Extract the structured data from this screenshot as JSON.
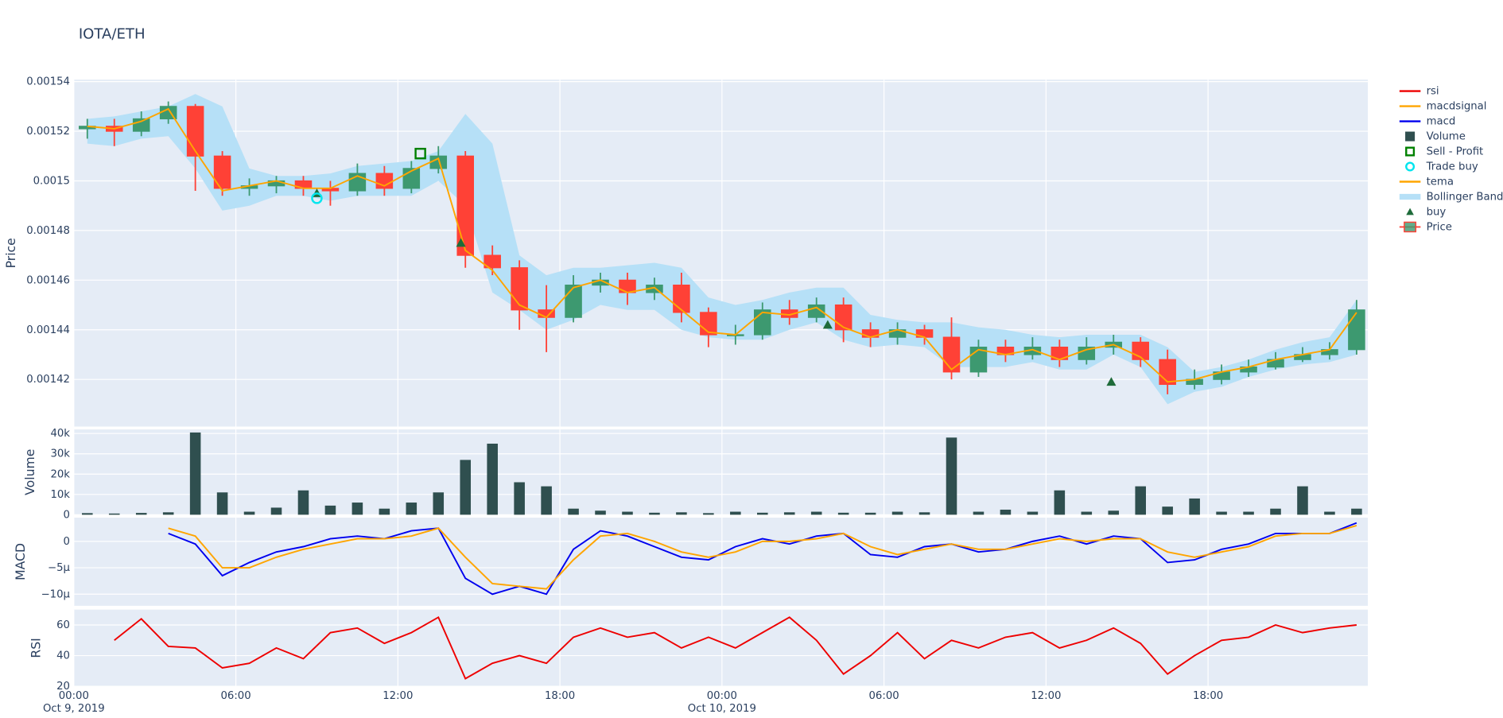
{
  "chart_data": {
    "type": "candlestick",
    "title": "IOTA/ETH",
    "legend": "right",
    "grid": true,
    "xlim": [
      "2019-10-09 00:00",
      "2019-10-10 23:55"
    ],
    "xticks": [
      {
        "value": "2019-10-09 00:00",
        "label": "00:00"
      },
      {
        "value": "2019-10-09 06:00",
        "label": "06:00"
      },
      {
        "value": "2019-10-09 12:00",
        "label": "12:00"
      },
      {
        "value": "2019-10-09 18:00",
        "label": "18:00"
      },
      {
        "value": "2019-10-10 00:00",
        "label": "00:00"
      },
      {
        "value": "2019-10-10 06:00",
        "label": "06:00"
      },
      {
        "value": "2019-10-10 12:00",
        "label": "12:00"
      },
      {
        "value": "2019-10-10 18:00",
        "label": "18:00"
      }
    ],
    "xtick_dates": [
      {
        "value": "2019-10-09 00:00",
        "label": "Oct 9, 2019"
      },
      {
        "value": "2019-10-10 00:00",
        "label": "Oct 10, 2019"
      }
    ],
    "x": [
      "2019-10-09 00:30",
      "2019-10-09 01:30",
      "2019-10-09 02:30",
      "2019-10-09 03:30",
      "2019-10-09 04:30",
      "2019-10-09 05:30",
      "2019-10-09 06:30",
      "2019-10-09 07:30",
      "2019-10-09 08:30",
      "2019-10-09 09:30",
      "2019-10-09 10:30",
      "2019-10-09 11:30",
      "2019-10-09 12:30",
      "2019-10-09 13:30",
      "2019-10-09 14:30",
      "2019-10-09 15:30",
      "2019-10-09 16:30",
      "2019-10-09 17:30",
      "2019-10-09 18:30",
      "2019-10-09 19:30",
      "2019-10-09 20:30",
      "2019-10-09 21:30",
      "2019-10-09 22:30",
      "2019-10-09 23:30",
      "2019-10-10 00:30",
      "2019-10-10 01:30",
      "2019-10-10 02:30",
      "2019-10-10 03:30",
      "2019-10-10 04:30",
      "2019-10-10 05:30",
      "2019-10-10 06:30",
      "2019-10-10 07:30",
      "2019-10-10 08:30",
      "2019-10-10 09:30",
      "2019-10-10 10:30",
      "2019-10-10 11:30",
      "2019-10-10 12:30",
      "2019-10-10 13:30",
      "2019-10-10 14:30",
      "2019-10-10 15:30",
      "2019-10-10 16:30",
      "2019-10-10 17:30",
      "2019-10-10 18:30",
      "2019-10-10 19:30",
      "2019-10-10 20:30",
      "2019-10-10 21:30",
      "2019-10-10 22:30",
      "2019-10-10 23:30"
    ],
    "panels": [
      {
        "ylabel": "Price",
        "ylim": [
          0.001401,
          0.0015408
        ],
        "yticks": [
          0.00142,
          0.00144,
          0.00146,
          0.00148,
          0.0015,
          0.00152,
          0.00154
        ],
        "series": [
          {
            "name": "Price",
            "type": "candlestick",
            "increasing": "#3D9970",
            "decreasing": "#FF4136",
            "open": [
              0.001521,
              0.001522,
              0.00152,
              0.001525,
              0.00153,
              0.00151,
              0.001497,
              0.001498,
              0.0015,
              0.001497,
              0.001496,
              0.001503,
              0.001497,
              0.001505,
              0.00151,
              0.00147,
              0.001465,
              0.001448,
              0.001445,
              0.001458,
              0.00146,
              0.001455,
              0.001458,
              0.001447,
              0.001438,
              0.001438,
              0.001448,
              0.001445,
              0.00145,
              0.00144,
              0.001437,
              0.00144,
              0.001437,
              0.001423,
              0.001433,
              0.00143,
              0.001433,
              0.001428,
              0.001433,
              0.001435,
              0.001428,
              0.001418,
              0.00142,
              0.001423,
              0.001425,
              0.001428,
              0.00143,
              0.001432
            ],
            "high": [
              0.001525,
              0.001525,
              0.001528,
              0.001532,
              0.001531,
              0.001512,
              0.001501,
              0.001502,
              0.001502,
              0.0015,
              0.001507,
              0.001506,
              0.001508,
              0.001514,
              0.001512,
              0.001474,
              0.001468,
              0.001458,
              0.001462,
              0.001463,
              0.001463,
              0.001461,
              0.001463,
              0.001449,
              0.001442,
              0.001451,
              0.001452,
              0.001453,
              0.001453,
              0.001443,
              0.001443,
              0.001442,
              0.001445,
              0.001436,
              0.001436,
              0.001437,
              0.001436,
              0.001437,
              0.001438,
              0.001437,
              0.001432,
              0.001424,
              0.001426,
              0.001428,
              0.001431,
              0.001433,
              0.001435,
              0.001452
            ],
            "low": [
              0.001517,
              0.001514,
              0.001518,
              0.001523,
              0.001496,
              0.001494,
              0.001494,
              0.001495,
              0.001494,
              0.00149,
              0.001494,
              0.001494,
              0.001495,
              0.001503,
              0.001465,
              0.001462,
              0.00144,
              0.001431,
              0.001443,
              0.001455,
              0.00145,
              0.001452,
              0.001443,
              0.001433,
              0.001434,
              0.001436,
              0.001442,
              0.001443,
              0.001435,
              0.001433,
              0.001434,
              0.001434,
              0.00142,
              0.001421,
              0.001427,
              0.001428,
              0.001425,
              0.001426,
              0.00143,
              0.001425,
              0.001414,
              0.001416,
              0.001418,
              0.001421,
              0.001424,
              0.001427,
              0.001428,
              0.00143
            ],
            "close": [
              0.001522,
              0.00152,
              0.001525,
              0.00153,
              0.00151,
              0.001497,
              0.001498,
              0.0015,
              0.001497,
              0.001496,
              0.001503,
              0.001497,
              0.001505,
              0.00151,
              0.00147,
              0.001465,
              0.001448,
              0.001445,
              0.001458,
              0.00146,
              0.001455,
              0.001458,
              0.001447,
              0.001438,
              0.001438,
              0.001448,
              0.001445,
              0.00145,
              0.00144,
              0.001437,
              0.00144,
              0.001437,
              0.001423,
              0.001433,
              0.00143,
              0.001433,
              0.001428,
              0.001433,
              0.001435,
              0.001428,
              0.001418,
              0.00142,
              0.001423,
              0.001425,
              0.001428,
              0.00143,
              0.001432,
              0.001448
            ]
          },
          {
            "name": "buy",
            "type": "marker",
            "symbol": "triangle-up",
            "color": "#1e6b3a",
            "x": [
              "2019-10-09 09:00",
              "2019-10-09 14:20",
              "2019-10-10 03:55",
              "2019-10-10 14:25"
            ],
            "values": [
              0.001495,
              0.001475,
              0.001442,
              0.001419
            ]
          },
          {
            "name": "Bollinger Band",
            "type": "band",
            "color": "#b6e0f7",
            "upper": [
              0.001525,
              0.001526,
              0.001528,
              0.00153,
              0.001535,
              0.00153,
              0.001505,
              0.001502,
              0.001502,
              0.001503,
              0.001506,
              0.001507,
              0.001508,
              0.001512,
              0.001527,
              0.001515,
              0.00147,
              0.001462,
              0.001465,
              0.001465,
              0.001466,
              0.001467,
              0.001465,
              0.001453,
              0.00145,
              0.001452,
              0.001455,
              0.001457,
              0.001457,
              0.001446,
              0.001444,
              0.001443,
              0.001443,
              0.001441,
              0.00144,
              0.001438,
              0.001437,
              0.001438,
              0.001438,
              0.001438,
              0.001433,
              0.001423,
              0.001425,
              0.001428,
              0.001432,
              0.001435,
              0.001437,
              0.001452
            ],
            "lower": [
              0.001515,
              0.001514,
              0.001517,
              0.001518,
              0.001505,
              0.001488,
              0.00149,
              0.001494,
              0.001494,
              0.001492,
              0.001494,
              0.001494,
              0.001494,
              0.0015,
              0.00149,
              0.001455,
              0.001448,
              0.00144,
              0.001444,
              0.00145,
              0.001448,
              0.001448,
              0.00144,
              0.001437,
              0.001436,
              0.001436,
              0.00144,
              0.001443,
              0.001436,
              0.001433,
              0.001434,
              0.001433,
              0.001425,
              0.001425,
              0.001425,
              0.001427,
              0.001424,
              0.001424,
              0.00143,
              0.001425,
              0.00141,
              0.001415,
              0.001417,
              0.001421,
              0.001424,
              0.001426,
              0.001427,
              0.00143
            ]
          },
          {
            "name": "tema",
            "type": "line",
            "color": "#ffa500",
            "values": [
              0.001522,
              0.001521,
              0.001524,
              0.001529,
              0.001512,
              0.001496,
              0.001498,
              0.0015,
              0.001497,
              0.001497,
              0.001502,
              0.001498,
              0.001504,
              0.001509,
              0.001472,
              0.001464,
              0.00145,
              0.001445,
              0.001457,
              0.00146,
              0.001455,
              0.001457,
              0.001448,
              0.001439,
              0.001438,
              0.001447,
              0.001446,
              0.001449,
              0.001441,
              0.001437,
              0.00144,
              0.001437,
              0.001424,
              0.001432,
              0.00143,
              0.001432,
              0.001428,
              0.001432,
              0.001434,
              0.001429,
              0.001419,
              0.00142,
              0.001423,
              0.001425,
              0.001428,
              0.00143,
              0.001432,
              0.001447
            ]
          },
          {
            "name": "Trade buy",
            "type": "marker",
            "symbol": "circle-open",
            "color": "#00e5ee",
            "x": [
              "2019-10-09 09:00"
            ],
            "values": [
              0.001493
            ]
          },
          {
            "name": "Sell - Profit",
            "type": "marker",
            "symbol": "square-open",
            "color": "#008000",
            "x": [
              "2019-10-09 12:50"
            ],
            "values": [
              0.001511
            ]
          }
        ]
      },
      {
        "ylabel": "Volume",
        "ylim": [
          0,
          42000
        ],
        "yticks": [
          0,
          {
            "value": 10000,
            "label": "10k"
          },
          {
            "value": 20000,
            "label": "20k"
          },
          {
            "value": 30000,
            "label": "30k"
          },
          {
            "value": 40000,
            "label": "40k"
          }
        ],
        "series": [
          {
            "name": "Volume",
            "type": "bar",
            "color": "#2f4f4f",
            "values": [
              800,
              600,
              900,
              1200,
              40500,
              11000,
              1500,
              3500,
              12000,
              4500,
              6000,
              3000,
              6000,
              11000,
              27000,
              35000,
              16000,
              14000,
              3000,
              2000,
              1500,
              1000,
              1200,
              800,
              1500,
              1000,
              1200,
              1500,
              1000,
              1000,
              1500,
              1200,
              38000,
              1500,
              2500,
              1500,
              12000,
              1500,
              2000,
              14000,
              4000,
              8000,
              1500,
              1500,
              3000,
              14000,
              1500,
              3000
            ]
          }
        ]
      },
      {
        "ylabel": "MACD",
        "ylim": [
          -1.22e-05,
          4.5e-06
        ],
        "yticks": [
          {
            "value": -1e-05,
            "label": "−10μ"
          },
          {
            "value": -5e-06,
            "label": "−5μ"
          },
          0
        ],
        "series": [
          {
            "name": "macd",
            "type": "line",
            "color": "#0000ee",
            "values": [
              null,
              null,
              null,
              1.5e-06,
              -5e-07,
              -6.5e-06,
              -4e-06,
              -2e-06,
              -1e-06,
              5e-07,
              1e-06,
              5e-07,
              2e-06,
              2.5e-06,
              -7e-06,
              -1e-05,
              -8.5e-06,
              -1e-05,
              -1.5e-06,
              2e-06,
              1e-06,
              -1e-06,
              -3e-06,
              -3.5e-06,
              -1e-06,
              5e-07,
              -5e-07,
              1e-06,
              1.5e-06,
              -2.5e-06,
              -3e-06,
              -1e-06,
              -5e-07,
              -2e-06,
              -1.5e-06,
              0,
              1e-06,
              -5e-07,
              1e-06,
              5e-07,
              -4e-06,
              -3.5e-06,
              -1.5e-06,
              -5e-07,
              1.5e-06,
              1.5e-06,
              1.5e-06,
              3.5e-06
            ]
          },
          {
            "name": "macdsignal",
            "type": "line",
            "color": "#ffa500",
            "values": [
              null,
              null,
              null,
              2.5e-06,
              1e-06,
              -5e-06,
              -5e-06,
              -3e-06,
              -1.5e-06,
              -5e-07,
              5e-07,
              5e-07,
              1e-06,
              2.5e-06,
              -3e-06,
              -8e-06,
              -8.5e-06,
              -9e-06,
              -3.5e-06,
              1e-06,
              1.5e-06,
              0,
              -2e-06,
              -3e-06,
              -2e-06,
              0,
              0,
              5e-07,
              1.5e-06,
              -1e-06,
              -2.5e-06,
              -1.5e-06,
              -5e-07,
              -1.5e-06,
              -1.5e-06,
              -5e-07,
              5e-07,
              0,
              5e-07,
              5e-07,
              -2e-06,
              -3e-06,
              -2e-06,
              -1e-06,
              1e-06,
              1.5e-06,
              1.5e-06,
              3e-06
            ]
          }
        ]
      },
      {
        "ylabel": "RSI",
        "ylim": [
          20,
          70
        ],
        "yticks": [
          20,
          40,
          60
        ],
        "series": [
          {
            "name": "rsi",
            "type": "line",
            "color": "#ee0000",
            "values": [
              null,
              50,
              64,
              46,
              45,
              32,
              35,
              45,
              38,
              55,
              58,
              48,
              55,
              65,
              25,
              35,
              40,
              35,
              52,
              58,
              52,
              55,
              45,
              52,
              45,
              55,
              65,
              50,
              28,
              40,
              55,
              38,
              50,
              45,
              52,
              55,
              45,
              50,
              58,
              48,
              28,
              40,
              50,
              52,
              60,
              55,
              58,
              60
            ]
          }
        ]
      }
    ]
  }
}
